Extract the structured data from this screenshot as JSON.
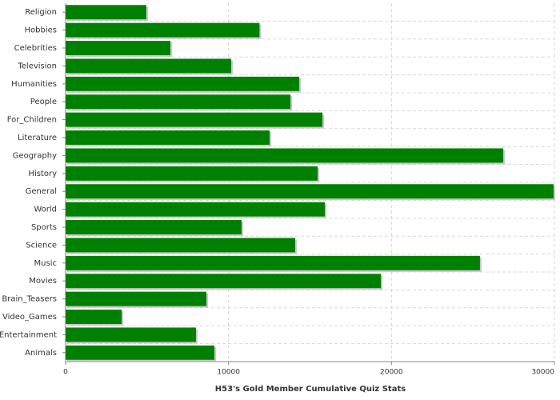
{
  "chart_data": {
    "type": "hbar",
    "x_label": "H53's Gold Member Cumulative Quiz Stats",
    "categories": [
      "Religion",
      "Hobbies",
      "Celebrities",
      "Television",
      "Humanities",
      "People",
      "For_Children",
      "Literature",
      "Geography",
      "History",
      "General",
      "World",
      "Sports",
      "Science",
      "Music",
      "Movies",
      "Brain_Teasers",
      "Video_Games",
      "Entertainment",
      "Animals"
    ],
    "values": [
      4950,
      11900,
      6430,
      10160,
      14340,
      13800,
      15760,
      12520,
      26860,
      15470,
      29950,
      15910,
      10800,
      14090,
      25430,
      19350,
      8640,
      3440,
      8000,
      9130
    ],
    "color": "#008000",
    "xlim": [
      0,
      30000
    ],
    "xticks": [
      0,
      10000,
      20000,
      30000
    ],
    "grid": true
  }
}
